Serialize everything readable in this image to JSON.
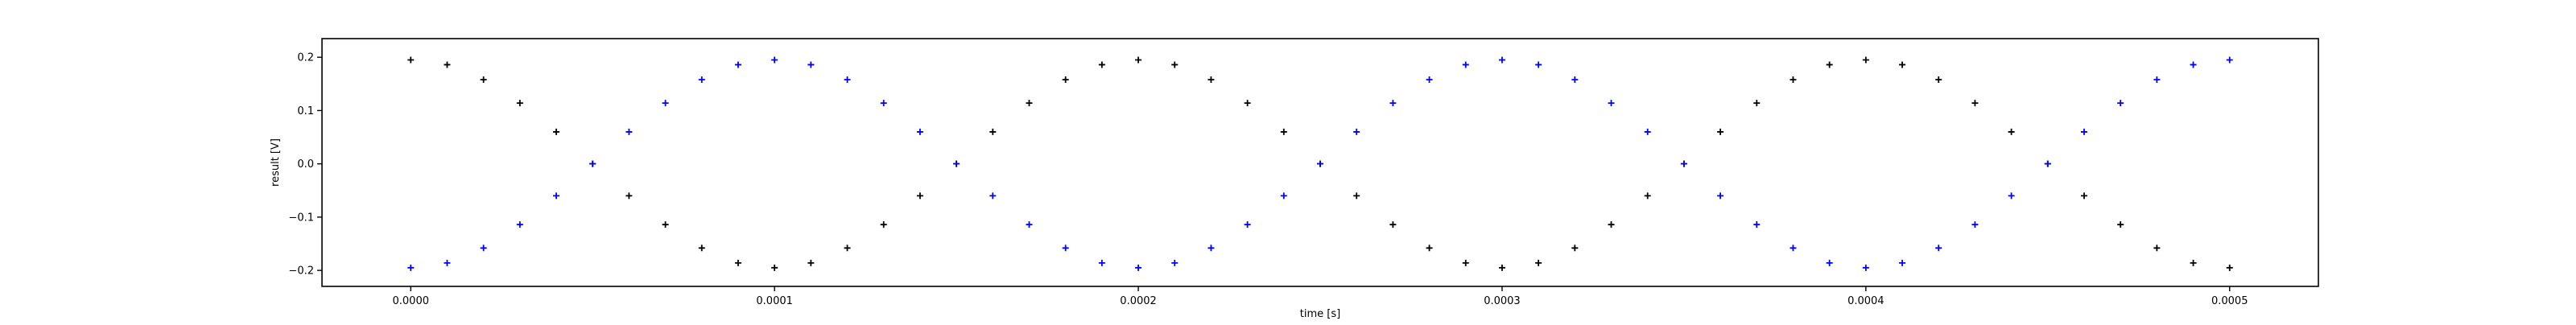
{
  "chart_data": {
    "type": "scatter",
    "xlabel": "time [s]",
    "ylabel": "result [V]",
    "xlim": [
      -2.44e-05,
      0.0005244
    ],
    "ylim": [
      -0.23,
      0.235
    ],
    "x_ticks": [
      0.0,
      0.0001,
      0.0002,
      0.0003,
      0.0004,
      0.0005
    ],
    "x_tick_labels": [
      "0.0000",
      "0.0001",
      "0.0002",
      "0.0003",
      "0.0004",
      "0.0005"
    ],
    "y_ticks": [
      -0.2,
      -0.1,
      0.0,
      0.1,
      0.2
    ],
    "y_tick_labels": [
      "−0.2",
      "−0.1",
      "0.0",
      "0.1",
      "0.2"
    ],
    "grid": false,
    "legend": "none",
    "series": [
      {
        "color": "#000000",
        "marker": "plus",
        "x": [
          0.0,
          1e-05,
          2e-05,
          3e-05,
          4e-05,
          5e-05,
          6e-05,
          7e-05,
          8e-05,
          9e-05,
          0.0001,
          0.00011,
          0.00012,
          0.00013,
          0.00014,
          0.00015,
          0.00016,
          0.00017,
          0.00018,
          0.00019,
          0.0002,
          0.00021,
          0.00022,
          0.00023,
          0.00024,
          0.00025,
          0.00026,
          0.00027,
          0.00028,
          0.00029,
          0.0003,
          0.00031,
          0.00032,
          0.00033,
          0.00034,
          0.00035,
          0.00036,
          0.00037,
          0.00038,
          0.00039,
          0.0004,
          0.00041,
          0.00042,
          0.00043,
          0.00044,
          0.00045,
          0.00046,
          0.00047,
          0.00048,
          0.00049,
          0.0005
        ],
        "y": [
          0.195,
          0.186,
          0.158,
          0.114,
          0.06,
          0.0,
          -0.06,
          -0.114,
          -0.158,
          -0.186,
          -0.195,
          -0.186,
          -0.158,
          -0.114,
          -0.06,
          0.0,
          0.06,
          0.114,
          0.158,
          0.186,
          0.195,
          0.186,
          0.158,
          0.114,
          0.06,
          0.0,
          -0.06,
          -0.114,
          -0.158,
          -0.186,
          -0.195,
          -0.186,
          -0.158,
          -0.114,
          -0.06,
          0.0,
          0.06,
          0.114,
          0.158,
          0.186,
          0.195,
          0.186,
          0.158,
          0.114,
          0.06,
          0.0,
          -0.06,
          -0.114,
          -0.158,
          -0.186,
          -0.195
        ]
      },
      {
        "color": "#0000ff",
        "marker": "plus",
        "x": [
          0.0,
          1e-05,
          2e-05,
          3e-05,
          4e-05,
          5e-05,
          6e-05,
          7e-05,
          8e-05,
          9e-05,
          0.0001,
          0.00011,
          0.00012,
          0.00013,
          0.00014,
          0.00015,
          0.00016,
          0.00017,
          0.00018,
          0.00019,
          0.0002,
          0.00021,
          0.00022,
          0.00023,
          0.00024,
          0.00025,
          0.00026,
          0.00027,
          0.00028,
          0.00029,
          0.0003,
          0.00031,
          0.00032,
          0.00033,
          0.00034,
          0.00035,
          0.00036,
          0.00037,
          0.00038,
          0.00039,
          0.0004,
          0.00041,
          0.00042,
          0.00043,
          0.00044,
          0.00045,
          0.00046,
          0.00047,
          0.00048,
          0.00049,
          0.0005
        ],
        "y": [
          -0.195,
          -0.186,
          -0.158,
          -0.114,
          -0.06,
          0.0,
          0.06,
          0.114,
          0.158,
          0.186,
          0.195,
          0.186,
          0.158,
          0.114,
          0.06,
          0.0,
          -0.06,
          -0.114,
          -0.158,
          -0.186,
          -0.195,
          -0.186,
          -0.158,
          -0.114,
          -0.06,
          0.0,
          0.06,
          0.114,
          0.158,
          0.186,
          0.195,
          0.186,
          0.158,
          0.114,
          0.06,
          0.0,
          -0.06,
          -0.114,
          -0.158,
          -0.186,
          -0.195,
          -0.186,
          -0.158,
          -0.114,
          -0.06,
          0.0,
          0.06,
          0.114,
          0.158,
          0.186,
          0.195
        ]
      }
    ]
  }
}
